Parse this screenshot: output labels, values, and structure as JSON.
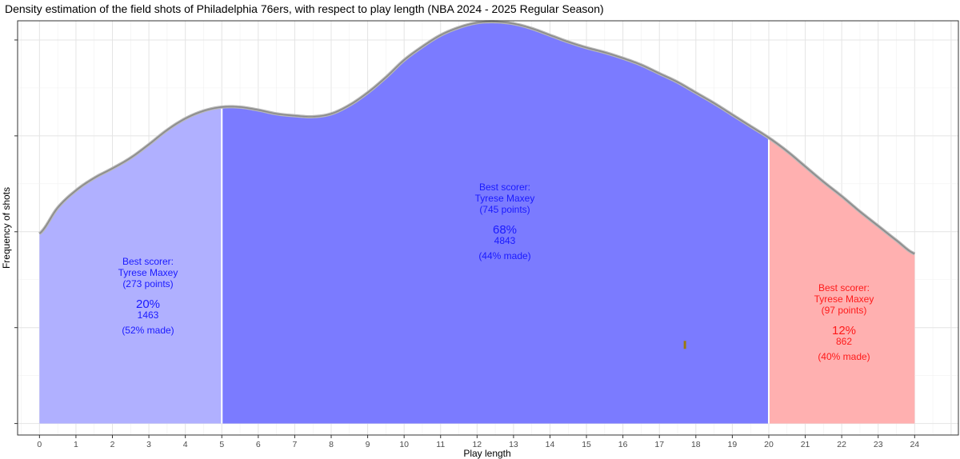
{
  "chart_data": {
    "type": "area",
    "title": "Density estimation of the field shots of Philadelphia 76ers, with respect to play length (NBA 2024 - 2025 Regular Season)",
    "xlabel": "Play length",
    "ylabel": "Frequency of shots",
    "xlim": [
      -0.6,
      25.2
    ],
    "ylim": [
      -0.12,
      4.2
    ],
    "x_ticks": [
      0,
      1,
      2,
      3,
      4,
      5,
      6,
      7,
      8,
      9,
      10,
      11,
      12,
      13,
      14,
      15,
      16,
      17,
      18,
      19,
      20,
      21,
      22,
      23,
      24
    ],
    "density_curve": {
      "x": [
        0,
        0.5,
        1,
        1.5,
        2,
        2.5,
        3,
        3.5,
        4,
        4.5,
        5,
        5.5,
        6,
        6.5,
        7,
        7.5,
        8,
        8.5,
        9,
        9.5,
        10,
        10.5,
        11,
        11.5,
        12,
        12.5,
        13,
        13.5,
        14,
        14.5,
        15,
        15.5,
        16,
        16.5,
        17,
        17.5,
        18,
        18.5,
        19,
        19.5,
        20,
        20.5,
        21,
        21.5,
        22,
        22.5,
        23,
        23.5,
        24
      ],
      "y": [
        1.98,
        2.25,
        2.43,
        2.56,
        2.66,
        2.77,
        2.91,
        3.06,
        3.18,
        3.26,
        3.3,
        3.3,
        3.27,
        3.23,
        3.21,
        3.2,
        3.23,
        3.32,
        3.45,
        3.61,
        3.79,
        3.93,
        4.05,
        4.13,
        4.18,
        4.19,
        4.17,
        4.12,
        4.05,
        3.98,
        3.92,
        3.87,
        3.81,
        3.74,
        3.65,
        3.56,
        3.45,
        3.34,
        3.22,
        3.1,
        2.98,
        2.84,
        2.68,
        2.52,
        2.37,
        2.21,
        2.06,
        1.91,
        1.77
      ]
    },
    "segments": [
      {
        "x_start": 0,
        "x_end": 5,
        "color": "#b0b0ff",
        "label": {
          "best": "Best scorer:",
          "player": "Tyrese Maxey",
          "points": "(273 points)",
          "pct": "20%",
          "count": "1463",
          "made": "(52% made)"
        },
        "label_color": "#1a1aff"
      },
      {
        "x_start": 5,
        "x_end": 20,
        "color": "#7b7bff",
        "label": {
          "best": "Best scorer:",
          "player": "Tyrese Maxey",
          "points": "(745 points)",
          "pct": "68%",
          "count": "4843",
          "made": "(44% made)"
        },
        "label_color": "#1a1aff"
      },
      {
        "x_start": 20,
        "x_end": 24,
        "color": "#ffb0b0",
        "label": {
          "best": "Best scorer:",
          "player": "Tyrese Maxey",
          "points": "(97 points)",
          "pct": "12%",
          "count": "862",
          "made": "(40% made)"
        },
        "label_color": "#ff1a1a"
      }
    ],
    "marker": {
      "x": 17.7,
      "y": 0.82,
      "color": "#9a7a10"
    },
    "grid": true,
    "legend": "none"
  }
}
